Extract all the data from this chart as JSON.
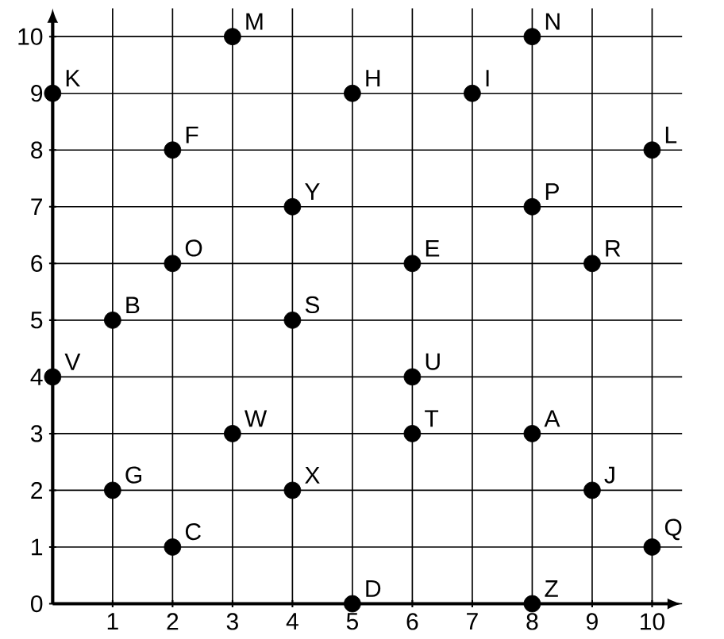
{
  "chart_data": {
    "type": "scatter",
    "marker": "circle",
    "grid": true,
    "xlim": [
      0,
      10.5
    ],
    "ylim": [
      0,
      10.5
    ],
    "xticks": [
      1,
      2,
      3,
      4,
      5,
      6,
      7,
      8,
      9,
      10
    ],
    "yticks": [
      0,
      1,
      2,
      3,
      4,
      5,
      6,
      7,
      8,
      9,
      10
    ],
    "series": [
      {
        "color": "#000000",
        "x": [
          0,
          3,
          8,
          5,
          7,
          10,
          2,
          4,
          8,
          2,
          6,
          9,
          1,
          4,
          0,
          6,
          3,
          6,
          8,
          1,
          4,
          9,
          2,
          10,
          5,
          8
        ],
        "values": [
          9,
          10,
          10,
          9,
          9,
          8,
          8,
          7,
          7,
          6,
          6,
          6,
          5,
          5,
          4,
          4,
          3,
          3,
          3,
          2,
          2,
          2,
          1,
          1,
          0,
          0
        ]
      }
    ],
    "annotations": [
      {
        "text": "K",
        "x": 0,
        "y": 9
      },
      {
        "text": "M",
        "x": 3,
        "y": 10
      },
      {
        "text": "N",
        "x": 8,
        "y": 10
      },
      {
        "text": "H",
        "x": 5,
        "y": 9
      },
      {
        "text": "I",
        "x": 7,
        "y": 9
      },
      {
        "text": "L",
        "x": 10,
        "y": 8
      },
      {
        "text": "F",
        "x": 2,
        "y": 8
      },
      {
        "text": "Y",
        "x": 4,
        "y": 7
      },
      {
        "text": "P",
        "x": 8,
        "y": 7
      },
      {
        "text": "O",
        "x": 2,
        "y": 6
      },
      {
        "text": "E",
        "x": 6,
        "y": 6
      },
      {
        "text": "R",
        "x": 9,
        "y": 6
      },
      {
        "text": "B",
        "x": 1,
        "y": 5
      },
      {
        "text": "S",
        "x": 4,
        "y": 5
      },
      {
        "text": "V",
        "x": 0,
        "y": 4
      },
      {
        "text": "U",
        "x": 6,
        "y": 4
      },
      {
        "text": "W",
        "x": 3,
        "y": 3
      },
      {
        "text": "T",
        "x": 6,
        "y": 3
      },
      {
        "text": "A",
        "x": 8,
        "y": 3
      },
      {
        "text": "G",
        "x": 1,
        "y": 2
      },
      {
        "text": "X",
        "x": 4,
        "y": 2
      },
      {
        "text": "J",
        "x": 9,
        "y": 2
      },
      {
        "text": "C",
        "x": 2,
        "y": 1
      },
      {
        "text": "Q",
        "x": 10,
        "y": 1
      },
      {
        "text": "D",
        "x": 5,
        "y": 0
      },
      {
        "text": "Z",
        "x": 8,
        "y": 0
      }
    ]
  }
}
